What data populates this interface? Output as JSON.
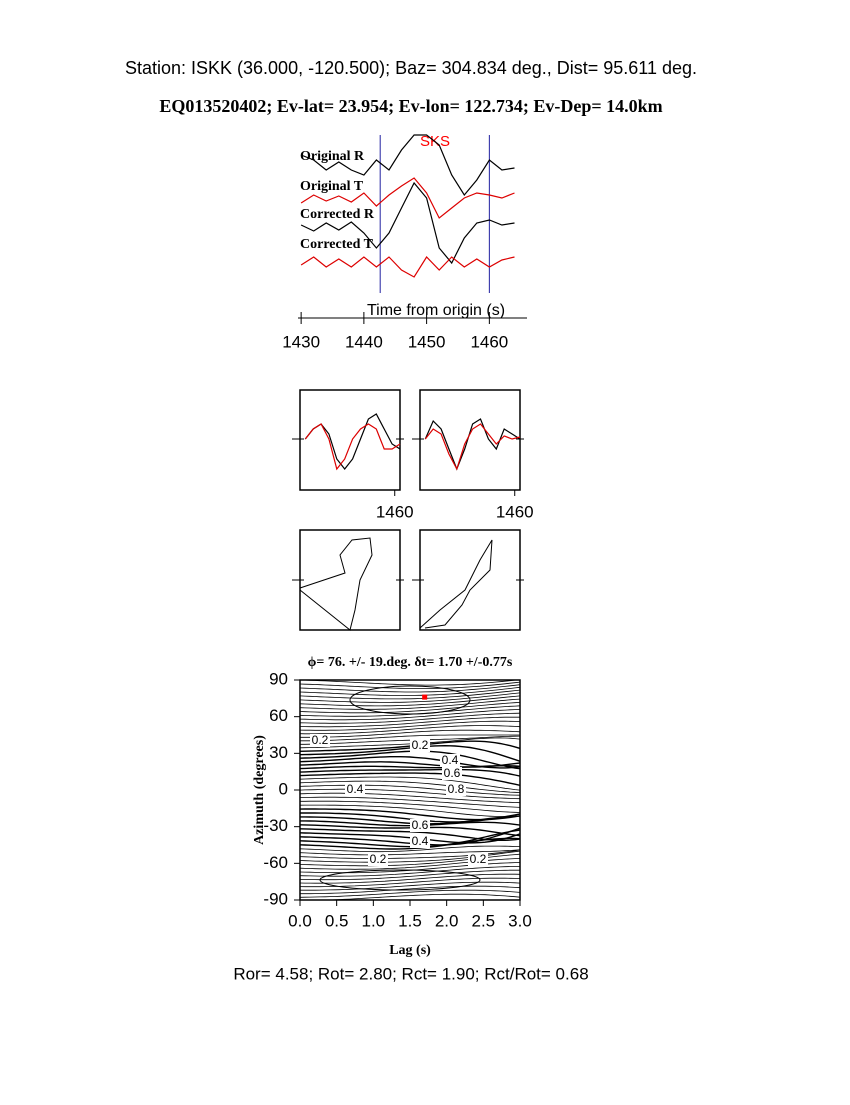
{
  "chart_data": [
    {
      "type": "line",
      "title": "Station: ISKK (36.000, -120.500); Baz=  304.834 deg., Dist=   95.611 deg.",
      "subtitle": "EQ013520402; Ev-lat=  23.954; Ev-lon= 122.734; Ev-Dep= 14.0km",
      "xlabel": "Time from origin (s)",
      "phase": {
        "label": "SKS",
        "color": "#ff0000"
      },
      "window": [
        1442.6,
        1460
      ],
      "window_color": "#2020a0",
      "xlim": [
        1429.5,
        1466
      ],
      "xticks": [
        1430,
        1440,
        1450,
        1460
      ],
      "x": [
        1430,
        1432,
        1434,
        1436,
        1438,
        1440,
        1442,
        1444,
        1446,
        1448,
        1450,
        1452,
        1454,
        1456,
        1458,
        1460,
        1462,
        1464
      ],
      "series": [
        {
          "name": "Original R",
          "color": "#000000",
          "values": [
            1,
            0.5,
            -0.5,
            0.3,
            -0.5,
            -1,
            0.5,
            -0.5,
            1.5,
            3,
            3,
            2,
            -1,
            -3,
            -1.5,
            0.5,
            -0.5,
            -0.3
          ]
        },
        {
          "name": "Original T",
          "color": "#dd0000",
          "values": [
            -0.5,
            0.3,
            -0.3,
            0.2,
            -0.4,
            0.5,
            -0.8,
            0.3,
            1.2,
            2,
            0.5,
            -2,
            -1,
            0,
            0.5,
            0.3,
            0,
            0.5
          ]
        },
        {
          "name": "Corrected R",
          "color": "#000000",
          "values": [
            0.3,
            -0.3,
            0.5,
            -0.2,
            0.6,
            -0.5,
            -2,
            -0.5,
            2,
            4.5,
            3,
            -2,
            -3.5,
            -1,
            0.5,
            0.8,
            0.3,
            0.5
          ]
        },
        {
          "name": "Corrected T",
          "color": "#dd0000",
          "values": [
            -0.3,
            0.5,
            -0.5,
            0.3,
            -0.5,
            0.5,
            -0.5,
            0.5,
            -0.8,
            -1.5,
            0.5,
            -0.8,
            0.5,
            -0.5,
            0.3,
            -0.5,
            0.2,
            0.5
          ]
        }
      ]
    },
    {
      "type": "window",
      "xlim": [
        1442,
        1461
      ],
      "xticks": [
        1460
      ],
      "x": [
        1443,
        1444.5,
        1446,
        1447.5,
        1449,
        1450.5,
        1452,
        1453.5,
        1455,
        1456.5,
        1458,
        1459.5,
        1461
      ],
      "series": [
        {
          "color": "#000000",
          "values": [
            0,
            1,
            1.5,
            0.5,
            -2,
            -3,
            -2,
            0,
            2,
            2.5,
            1,
            -0.5,
            -1
          ]
        },
        {
          "color": "#dd0000",
          "values": [
            0,
            1,
            1.5,
            0,
            -3,
            -2,
            0,
            1,
            1.5,
            1,
            -1,
            -1,
            -0.5
          ]
        }
      ]
    },
    {
      "type": "window",
      "xlim": [
        1442,
        1461
      ],
      "xticks": [
        1460
      ],
      "x": [
        1443,
        1444.5,
        1446,
        1447.5,
        1449,
        1450.5,
        1452,
        1453.5,
        1455,
        1456.5,
        1458,
        1459.5,
        1461
      ],
      "series": [
        {
          "color": "#000000",
          "values": [
            0,
            1.8,
            1,
            -1,
            -3,
            -1,
            1.5,
            2,
            0,
            -1,
            1,
            0.5,
            0
          ]
        },
        {
          "color": "#dd0000",
          "values": [
            0,
            1,
            0.5,
            -1.5,
            -3,
            -0.5,
            1,
            1.5,
            0.5,
            -0.5,
            0.3,
            0,
            0.2
          ]
        }
      ]
    },
    {
      "type": "motion",
      "xlim": [
        -1,
        1
      ],
      "ylim": [
        -1,
        1
      ],
      "x": [
        -1,
        -0.1,
        -0.2,
        0.04,
        0.4,
        0.44,
        0.2,
        0.1,
        0,
        -1
      ],
      "values": [
        -0.16,
        0.14,
        0.5,
        0.8,
        0.84,
        0.5,
        0,
        -0.6,
        -1,
        -0.2
      ]
    },
    {
      "type": "motion",
      "xlim": [
        -1,
        1
      ],
      "ylim": [
        -1,
        1
      ],
      "x": [
        -1,
        -0.6,
        -0.1,
        0.2,
        0.44,
        0.4,
        0,
        -0.16,
        -0.5,
        -0.9
      ],
      "values": [
        -0.96,
        -0.6,
        -0.2,
        0.4,
        0.8,
        0.2,
        -0.2,
        -0.5,
        -0.9,
        -0.96
      ]
    },
    {
      "type": "contour",
      "title": "ϕ= 76. +/- 19.deg. δt= 1.70 +/-0.77s",
      "xlabel": "Lag (s)",
      "ylabel": "Azimuth (degrees)",
      "xlim": [
        0,
        3
      ],
      "ylim": [
        -90,
        90
      ],
      "xticks": [
        {
          "value": 0,
          "label": "0.0"
        },
        0.5,
        {
          "value": 1,
          "label": "1.0"
        },
        1.5,
        {
          "value": 2,
          "label": "2.0"
        },
        2.5,
        {
          "value": 3,
          "label": "3.0"
        }
      ],
      "yticks": [
        -90,
        -60,
        -30,
        0,
        30,
        60,
        90
      ],
      "best": {
        "x": 1.7,
        "y": 76,
        "color": "#ff0000"
      },
      "contour_labels": [
        0.2,
        0.2,
        0.4,
        0.6,
        0.8,
        0.4,
        0.6,
        0.4,
        0.2,
        0.2
      ],
      "note": "Ror= 4.58; Rot= 2.80; Rct= 1.90; Rct/Rot= 0.68"
    }
  ]
}
